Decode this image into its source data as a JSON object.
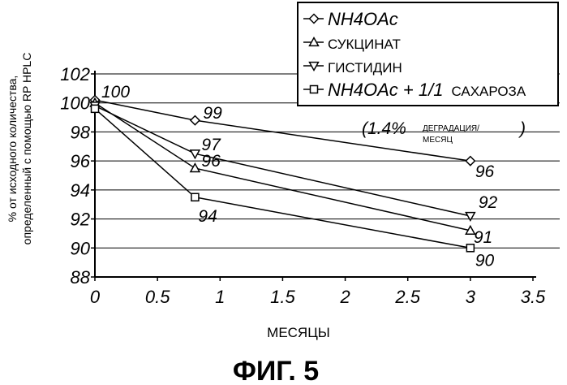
{
  "chart_data": {
    "type": "line",
    "title": "",
    "xlabel": "МЕСЯЦЫ",
    "ylabel_lines": [
      "% от исходного количества,",
      "определенный с помощью RP HPLC"
    ],
    "xlim": [
      0,
      3.5
    ],
    "ylim": [
      88,
      102
    ],
    "x_ticks": [
      "0",
      "0.5",
      "1",
      "1.5",
      "2",
      "2.5",
      "3",
      "3.5"
    ],
    "y_ticks": [
      "88",
      "90",
      "92",
      "94",
      "96",
      "98",
      "100",
      "102"
    ],
    "grid": "horizontal",
    "legend_position": "top-right",
    "series": [
      {
        "legend_parts": [
          {
            "text": "NH4OAc",
            "style": "italic"
          }
        ],
        "marker": "diamond",
        "x": [
          0,
          0.8,
          3
        ],
        "y": [
          100.2,
          98.8,
          96
        ],
        "labels": [
          "100",
          "99",
          "96"
        ]
      },
      {
        "legend_parts": [
          {
            "text": "СУКЦИНАТ",
            "style": "upright"
          }
        ],
        "marker": "triangle-up",
        "x": [
          0,
          0.8,
          3
        ],
        "y": [
          100,
          95.5,
          91.2
        ],
        "labels": [
          "",
          "96",
          "91"
        ]
      },
      {
        "legend_parts": [
          {
            "text": "ГИСТИДИН",
            "style": "upright"
          }
        ],
        "marker": "triangle-down",
        "x": [
          0,
          0.8,
          3
        ],
        "y": [
          99.8,
          96.5,
          92.2
        ],
        "labels": [
          "",
          "97",
          "92"
        ]
      },
      {
        "legend_parts": [
          {
            "text": "NH4OAc + 1/1",
            "style": "italic"
          },
          {
            "text": "САХАРОЗА",
            "style": "upright"
          }
        ],
        "marker": "square",
        "x": [
          0,
          0.8,
          3
        ],
        "y": [
          99.6,
          93.5,
          90
        ],
        "labels": [
          "",
          "94",
          "90"
        ]
      }
    ],
    "annotation": {
      "value": "(1.4%",
      "lines": [
        "ДЕГРАДАЦИЯ/",
        "МЕСЯЦ"
      ],
      "close": ")"
    }
  },
  "figure_caption": "ФИГ. 5"
}
